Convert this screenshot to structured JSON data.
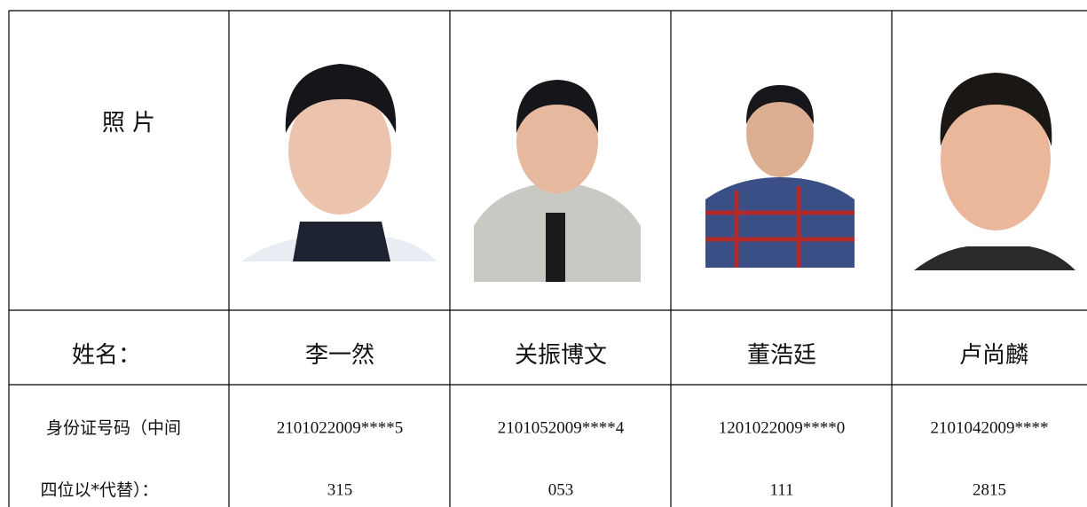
{
  "photo_label": "照 片",
  "name_label": "姓名：",
  "id_label": [
    "身份证号码（中间",
    "四位以*代替）："
  ],
  "people": [
    {
      "name": "李一然",
      "id": [
        "2101022009****5",
        "315"
      ]
    },
    {
      "name": "关振博文",
      "id": [
        "2101052009****4",
        "053"
      ]
    },
    {
      "name": "董浩廷",
      "id": [
        "1201022009****0",
        "111"
      ]
    },
    {
      "name": "卢尚麟",
      "id": [
        "2101042009****",
        "2815"
      ]
    }
  ]
}
